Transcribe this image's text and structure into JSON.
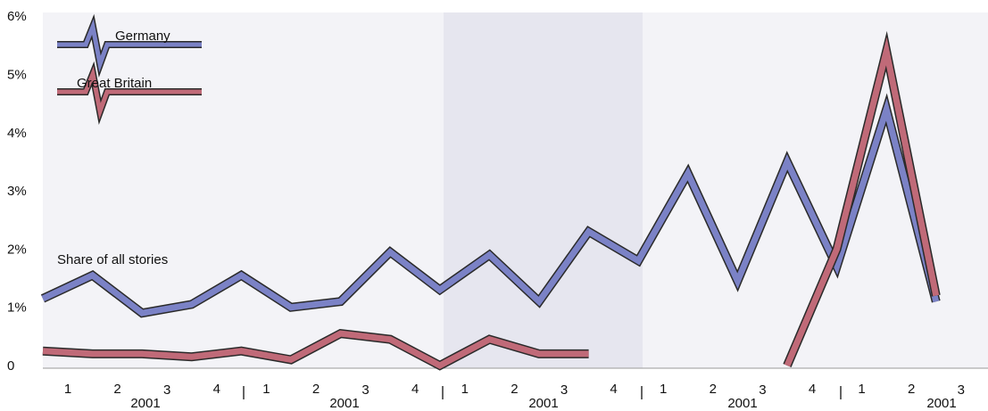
{
  "colors": {
    "germany": "#7b82c6",
    "great_britain": "#c06a78",
    "background_band_light": "#f3f3f7",
    "background_band_dark": "#e6e6ef"
  },
  "chart_data": {
    "type": "line",
    "title": "",
    "xlabel": "",
    "ylabel": "",
    "annotation": "Share of all stories",
    "y_ticks": [
      "0",
      "1%",
      "2%",
      "3%",
      "4%",
      "5%",
      "6%"
    ],
    "ylim": [
      0,
      6
    ],
    "grid": false,
    "legend_position": "top-left",
    "categories": [
      "1",
      "2",
      "3",
      "4",
      "1",
      "2",
      "3",
      "4",
      "1",
      "2",
      "3",
      "4",
      "1",
      "2",
      "3",
      "4",
      "1",
      "2",
      "3"
    ],
    "year_labels": [
      "2001",
      "2001",
      "2001",
      "2001",
      "2001"
    ],
    "series": [
      {
        "name": "Germany",
        "color_key": "germany",
        "values": [
          1.15,
          1.55,
          0.9,
          1.05,
          1.55,
          1.0,
          1.1,
          1.95,
          1.3,
          1.9,
          1.1,
          2.3,
          1.8,
          3.3,
          1.45,
          3.5,
          1.7,
          4.4,
          1.1
        ]
      },
      {
        "name": "Great Britain",
        "color_key": "great_britain",
        "values": [
          0.25,
          0.2,
          0.2,
          0.15,
          0.25,
          0.1,
          0.55,
          0.45,
          0.0,
          0.45,
          0.2,
          0.2,
          null,
          null,
          null,
          0.0,
          2.0,
          5.4,
          1.2
        ]
      }
    ]
  }
}
